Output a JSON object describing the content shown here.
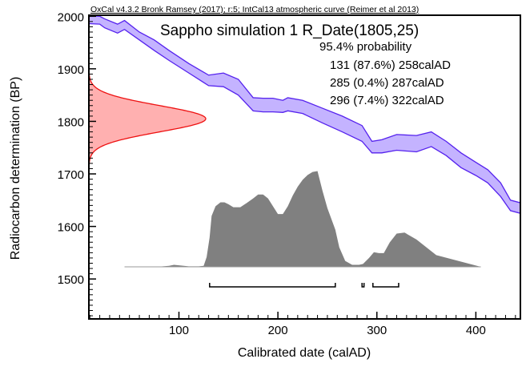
{
  "chart_data": {
    "type": "area",
    "header": "OxCal v4.3.2 Bronk Ramsey (2017); r:5; IntCal13 atmospheric curve (Reimer et al 2013)",
    "title": "Sappho simulation 1 R_Date(1805,25)",
    "xlabel": "Calibrated date (calAD)",
    "ylabel": "Radiocarbon determination (BP)",
    "xlim": [
      9,
      445
    ],
    "ylim": [
      1424,
      2002
    ],
    "x_ticks": [
      100,
      200,
      300,
      400
    ],
    "y_ticks": [
      1500,
      1600,
      1700,
      1800,
      1900,
      2000
    ],
    "probability_label": "95.4% probability",
    "ranges": [
      {
        "from": 131,
        "to": 258,
        "percent": "87.6%",
        "text": "131 (87.6%) 258calAD"
      },
      {
        "from": 285,
        "to": 287,
        "percent": "0.4%",
        "text": "285 (0.4%) 287calAD"
      },
      {
        "from": 296,
        "to": 322,
        "percent": "7.4%",
        "text": "296 (7.4%) 322calAD"
      }
    ],
    "calibration_curve": {
      "name": "IntCal13",
      "color": "#5522ee",
      "fill": "#c4b3ff",
      "x": [
        9,
        20,
        25,
        38,
        45,
        60,
        75,
        90,
        110,
        130,
        145,
        160,
        175,
        185,
        195,
        205,
        210,
        225,
        245,
        265,
        285,
        295,
        305,
        320,
        340,
        355,
        370,
        385,
        400,
        412,
        425,
        435,
        445
      ],
      "upper": [
        2001,
        2000,
        1995,
        1985,
        1992,
        1970,
        1955,
        1935,
        1910,
        1888,
        1892,
        1880,
        1845,
        1844,
        1844,
        1840,
        1845,
        1840,
        1825,
        1810,
        1792,
        1762,
        1765,
        1775,
        1773,
        1780,
        1762,
        1740,
        1722,
        1708,
        1683,
        1650,
        1645
      ],
      "lower": [
        1986,
        1985,
        1978,
        1968,
        1975,
        1955,
        1935,
        1916,
        1892,
        1868,
        1866,
        1850,
        1820,
        1818,
        1818,
        1817,
        1820,
        1815,
        1797,
        1780,
        1762,
        1740,
        1740,
        1745,
        1742,
        1752,
        1735,
        1712,
        1697,
        1683,
        1657,
        1630,
        1625
      ]
    },
    "radiocarbon_distribution": {
      "mean_bp": 1805,
      "sd_bp": 25,
      "color": "#ee1111",
      "fill": "#ffb0b0"
    },
    "calibrated_distribution": {
      "color": "#808080",
      "x": [
        45,
        70,
        80,
        90,
        95,
        100,
        110,
        120,
        125,
        128,
        131,
        133,
        137,
        142,
        146,
        150,
        155,
        162,
        168,
        175,
        180,
        185,
        190,
        195,
        200,
        205,
        210,
        215,
        220,
        225,
        230,
        235,
        240,
        242,
        245,
        250,
        258,
        262,
        268,
        275,
        282,
        286,
        292,
        297,
        302,
        307,
        313,
        320,
        328,
        340,
        360,
        405
      ],
      "density": [
        0,
        0,
        0.002,
        0.01,
        0.02,
        0.015,
        0.005,
        0.005,
        0.01,
        0.1,
        0.3,
        0.52,
        0.62,
        0.66,
        0.66,
        0.64,
        0.61,
        0.61,
        0.65,
        0.7,
        0.74,
        0.74,
        0.7,
        0.62,
        0.54,
        0.54,
        0.62,
        0.73,
        0.82,
        0.89,
        0.94,
        0.97,
        0.98,
        0.9,
        0.78,
        0.6,
        0.38,
        0.2,
        0.06,
        0.02,
        0.02,
        0.03,
        0.09,
        0.15,
        0.14,
        0.14,
        0.25,
        0.34,
        0.35,
        0.28,
        0.12,
        0
      ]
    }
  }
}
